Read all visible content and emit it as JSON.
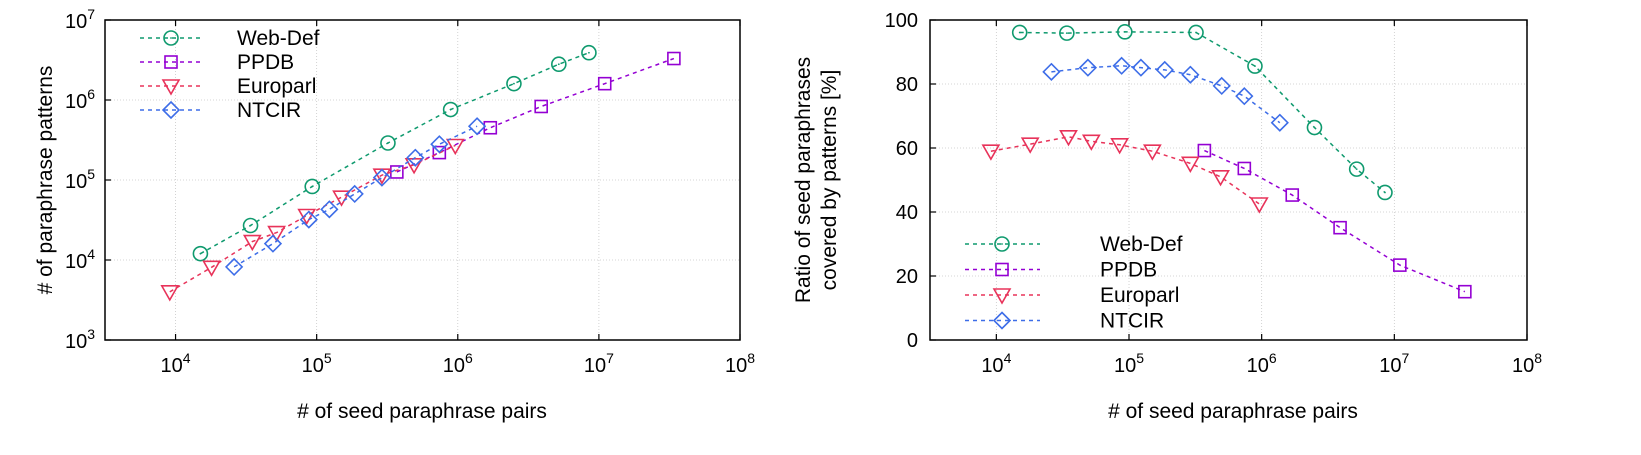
{
  "chart_data": [
    {
      "type": "line",
      "id": "left",
      "title": "",
      "xlabel": "# of seed paraphrase pairs",
      "ylabel": "# of paraphrase patterns",
      "xscale": "log",
      "yscale": "log",
      "xlim": [
        3162,
        100000000
      ],
      "ylim": [
        1000,
        10000000
      ],
      "x_tick_exponents": [
        4,
        5,
        6,
        7,
        8
      ],
      "y_tick_exponents": [
        3,
        4,
        5,
        6,
        7
      ],
      "grid": true,
      "legend_position": "top-left",
      "series": [
        {
          "name": "Web-Def",
          "color": "#0f9a6e",
          "marker": "circle",
          "x": [
            15000,
            34000,
            93000,
            320000,
            890000,
            2500000,
            5200000,
            8500000
          ],
          "y": [
            12000,
            27000,
            83000,
            290000,
            760000,
            1600000,
            2800000,
            3900000
          ]
        },
        {
          "name": "PPDB",
          "color": "#9400d3",
          "marker": "square",
          "x": [
            370000,
            740000,
            1700000,
            3900000,
            11000000,
            34000000
          ],
          "y": [
            126000,
            220000,
            450000,
            830000,
            1600000,
            3300000
          ]
        },
        {
          "name": "Europarl",
          "color": "#e8335a",
          "marker": "triangle-down",
          "x": [
            9100,
            18000,
            35000,
            52000,
            85000,
            150000,
            290000,
            490000,
            960000
          ],
          "y": [
            4000,
            8100,
            17000,
            22000,
            36000,
            61000,
            115000,
            155000,
            270000
          ]
        },
        {
          "name": "NTCIR",
          "color": "#3d6de8",
          "marker": "diamond",
          "x": [
            26000,
            49000,
            88000,
            123000,
            186000,
            290000,
            500000,
            740000,
            1370000
          ],
          "y": [
            8200,
            16000,
            32000,
            43000,
            67000,
            107000,
            190000,
            280000,
            470000
          ]
        }
      ]
    },
    {
      "type": "line",
      "id": "right",
      "title": "",
      "xlabel": "# of seed paraphrase pairs",
      "ylabel": [
        "Ratio of seed paraphrases",
        "covered by patterns [%]"
      ],
      "xscale": "log",
      "yscale": "linear",
      "xlim": [
        3162,
        100000000
      ],
      "ylim": [
        0,
        100
      ],
      "x_tick_exponents": [
        4,
        5,
        6,
        7,
        8
      ],
      "y_ticks": [
        0,
        20,
        40,
        60,
        80,
        100
      ],
      "grid": true,
      "legend_position": "bottom-left",
      "series": [
        {
          "name": "Web-Def",
          "color": "#0f9a6e",
          "marker": "circle",
          "x": [
            15000,
            34000,
            93000,
            320000,
            890000,
            2500000,
            5200000,
            8500000
          ],
          "y": [
            96.1,
            95.9,
            96.3,
            96.1,
            85.6,
            66.4,
            53.4,
            46.1
          ]
        },
        {
          "name": "PPDB",
          "color": "#9400d3",
          "marker": "square",
          "x": [
            370000,
            740000,
            1700000,
            3900000,
            11000000,
            34000000
          ],
          "y": [
            59.2,
            53.6,
            45.3,
            35.1,
            23.4,
            15.1
          ]
        },
        {
          "name": "Europarl",
          "color": "#e8335a",
          "marker": "triangle-down",
          "x": [
            9100,
            18000,
            35000,
            52000,
            85000,
            150000,
            290000,
            490000,
            960000
          ],
          "y": [
            59,
            61.2,
            63.5,
            62.1,
            61,
            59,
            55.2,
            51,
            42.5
          ]
        },
        {
          "name": "NTCIR",
          "color": "#3d6de8",
          "marker": "diamond",
          "x": [
            26000,
            49000,
            88000,
            123000,
            186000,
            290000,
            500000,
            740000,
            1370000
          ],
          "y": [
            83.8,
            85.1,
            85.7,
            85.1,
            84.4,
            82.9,
            79.4,
            76.2,
            67.9
          ]
        }
      ]
    }
  ]
}
